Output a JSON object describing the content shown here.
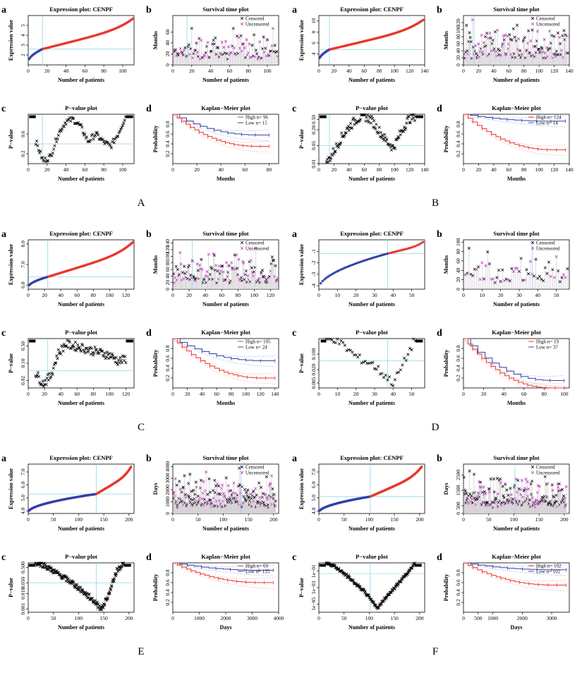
{
  "figure": {
    "groups": [
      {
        "letter": "A",
        "panels": {
          "a": {
            "letter": "a",
            "title": "Expression plot: CENPF",
            "xlabel": "Number of patients",
            "ylabel": "Expression value"
          },
          "b": {
            "letter": "b",
            "title": "Survival time plot",
            "xlabel": "Number of patients",
            "ylabel": "Months",
            "legend": [
              "Censored",
              "Uncensored"
            ]
          },
          "c": {
            "letter": "c",
            "title": "P−value plot",
            "xlabel": "Number of patients",
            "ylabel": "P−value"
          },
          "d": {
            "letter": "d",
            "title": "Kaplan−Meier plot",
            "xlabel": "Months",
            "ylabel": "Probability",
            "legend": [
              "High  n= 96",
              "Low   n= 15"
            ]
          }
        }
      },
      {
        "letter": "B",
        "panels": {
          "a": {
            "letter": "a",
            "title": "Expression plot: CENPF",
            "xlabel": "Number of patients",
            "ylabel": "Expression value"
          },
          "b": {
            "letter": "b",
            "title": "Survival time plot",
            "xlabel": "Number of patients",
            "ylabel": "Months",
            "legend": [
              "Censored",
              "Uncensored"
            ]
          },
          "c": {
            "letter": "c",
            "title": "P−value plot",
            "xlabel": "Number of patients",
            "ylabel": "P−value"
          },
          "d": {
            "letter": "d",
            "title": "Kaplan−Meier plot",
            "xlabel": "Months",
            "ylabel": "Probability",
            "legend": [
              "High  n= 124",
              "Low   n= 14"
            ]
          }
        }
      },
      {
        "letter": "C",
        "panels": {
          "a": {
            "letter": "a",
            "title": "Expression plot: CENPF",
            "xlabel": "Number of patients",
            "ylabel": "Expression value"
          },
          "b": {
            "letter": "b",
            "title": "Survival time plot",
            "xlabel": "Number of patients",
            "ylabel": "Months",
            "legend": [
              "Censored",
              "Uncensored"
            ]
          },
          "c": {
            "letter": "c",
            "title": "P−value plot",
            "xlabel": "Number of patients",
            "ylabel": "P−value"
          },
          "d": {
            "letter": "d",
            "title": "Kaplan−Meier plot",
            "xlabel": "Months",
            "ylabel": "Probability",
            "legend": [
              "High  n= 105",
              "Low   n= 24"
            ]
          }
        }
      },
      {
        "letter": "D",
        "panels": {
          "a": {
            "letter": "a",
            "title": "Expression plot: CENPF",
            "xlabel": "Number of patients",
            "ylabel": "Expression value"
          },
          "b": {
            "letter": "b",
            "title": "Survival time plot",
            "xlabel": "Number of patients",
            "ylabel": "Months",
            "legend": [
              "Censored",
              "Uncensored"
            ]
          },
          "c": {
            "letter": "c",
            "title": "P−value plot",
            "xlabel": "Number of patients",
            "ylabel": "P−value"
          },
          "d": {
            "letter": "d",
            "title": "Kaplan−Meier plot",
            "xlabel": "Months",
            "ylabel": "Probability",
            "legend": [
              "High  n= 19",
              "Low   n= 37"
            ]
          }
        }
      },
      {
        "letter": "E",
        "panels": {
          "a": {
            "letter": "a",
            "title": "Expression plot: CENPF",
            "xlabel": "Number of patients",
            "ylabel": "Expression value"
          },
          "b": {
            "letter": "b",
            "title": "Survival time plot",
            "xlabel": "Number of patients",
            "ylabel": "Days",
            "legend": [
              "Censored",
              "Uncensored"
            ]
          },
          "c": {
            "letter": "c",
            "title": "P−value plot",
            "xlabel": "Number of patients",
            "ylabel": "P−value"
          },
          "d": {
            "letter": "d",
            "title": "Kaplan−Meier plot",
            "xlabel": "Days",
            "ylabel": "Probability",
            "legend": [
              "High  n= 69",
              "Low   n= 135"
            ]
          }
        }
      },
      {
        "letter": "F",
        "panels": {
          "a": {
            "letter": "a",
            "title": "Expression plot: CENPF",
            "xlabel": "Number of patients",
            "ylabel": "Expression value"
          },
          "b": {
            "letter": "b",
            "title": "Survival time plot",
            "xlabel": "Number of patients",
            "ylabel": "Days",
            "legend": [
              "Censored",
              "Uncensored"
            ]
          },
          "c": {
            "letter": "c",
            "title": "P−value plot",
            "xlabel": "Number of patients",
            "ylabel": "P−value"
          },
          "d": {
            "letter": "d",
            "title": "Kaplan−Meier plot",
            "xlabel": "Days",
            "ylabel": "Probability",
            "legend": [
              "High  n= 102",
              "Low   n= 102"
            ]
          }
        }
      }
    ]
  },
  "colors": {
    "high": "#e8392a",
    "low": "#3340a8",
    "cutoff": "#8fd3ea",
    "censored": "#111111",
    "uncensored": "#c03fc0",
    "bar": "#d6d0d6"
  },
  "chart_data": [
    {
      "group": "A",
      "panel": "a",
      "type": "scatter",
      "n": 111,
      "cutoff_index": 15,
      "cutoff_value": 2.6,
      "y_start": 1.3,
      "y_end": 5.7,
      "xlim": [
        0,
        112
      ],
      "ylim": [
        1,
        6
      ],
      "xticks": [
        0,
        20,
        40,
        60,
        80,
        100
      ],
      "yticks": [
        2,
        3,
        4,
        5
      ]
    },
    {
      "group": "A",
      "panel": "b",
      "type": "scatter",
      "n": 111,
      "cutoff_index": 15,
      "ymax": 80,
      "xlim": [
        0,
        112
      ],
      "ylim": [
        0,
        90
      ],
      "xticks": [
        0,
        20,
        40,
        60,
        80,
        100
      ],
      "yticks": [
        0,
        20,
        40,
        60
      ]
    },
    {
      "group": "A",
      "panel": "c",
      "type": "scatter",
      "n": 111,
      "cutoff_index": 15,
      "log": false,
      "xlim": [
        0,
        112
      ],
      "ylim": [
        0,
        1
      ],
      "xticks": [
        0,
        20,
        40,
        60,
        80,
        100
      ],
      "ytick_labels": [
        "0.2",
        "0.6"
      ],
      "ytick_values": [
        0.2,
        0.6
      ],
      "pv_y": [
        0.45,
        0.05,
        0.15,
        0.6,
        0.85,
        0.9,
        0.75,
        0.45,
        0.6,
        0.45,
        0.35,
        0.6,
        0.95
      ]
    },
    {
      "group": "A",
      "panel": "d",
      "type": "line",
      "xmax": 80,
      "xlim": [
        0,
        88
      ],
      "ylim": [
        0,
        1
      ],
      "xticks": [
        0,
        20,
        40,
        60,
        80
      ],
      "yticks": [
        0.2,
        0.4,
        0.6,
        0.8
      ],
      "high_end": 0.35,
      "low_end": 0.58
    },
    {
      "group": "B",
      "panel": "a",
      "type": "scatter",
      "n": 138,
      "cutoff_index": 14,
      "cutoff_value": 4.8,
      "y_start": 2.8,
      "y_end": 10.2,
      "xlim": [
        0,
        140
      ],
      "ylim": [
        2,
        11
      ],
      "xticks": [
        0,
        20,
        40,
        60,
        80,
        100,
        120,
        140
      ],
      "yticks": [
        4,
        6,
        8,
        10
      ]
    },
    {
      "group": "B",
      "panel": "b",
      "type": "scatter",
      "n": 138,
      "cutoff_index": 14,
      "ymax": 140,
      "xlim": [
        0,
        140
      ],
      "ylim": [
        0,
        140
      ],
      "xticks": [
        0,
        20,
        40,
        60,
        80,
        100,
        120,
        140
      ],
      "yticks": [
        0,
        20,
        40,
        60,
        80,
        100,
        120
      ]
    },
    {
      "group": "B",
      "panel": "c",
      "type": "scatter",
      "n": 138,
      "cutoff_index": 14,
      "log": true,
      "xlim": [
        0,
        140
      ],
      "ylim": [
        0.01,
        0.8
      ],
      "xticks": [
        0,
        20,
        40,
        60,
        80,
        100,
        120,
        140
      ],
      "ytick_labels": [
        "0.01",
        "0.05",
        "0.20",
        "0.50"
      ],
      "ytick_values": [
        0.01,
        0.05,
        0.2,
        0.5
      ],
      "pv_y": [
        0.01,
        0.03,
        0.1,
        0.25,
        0.5,
        0.7,
        0.5,
        0.2,
        0.08,
        0.04,
        0.15,
        0.5,
        0.7
      ]
    },
    {
      "group": "B",
      "panel": "d",
      "type": "line",
      "xmax": 135,
      "xlim": [
        0,
        140
      ],
      "ylim": [
        0,
        1
      ],
      "xticks": [
        0,
        20,
        40,
        60,
        80,
        100,
        120,
        140
      ],
      "yticks": [
        0.2,
        0.4,
        0.6,
        0.8
      ],
      "high_end": 0.28,
      "low_end": 0.86
    },
    {
      "group": "C",
      "panel": "a",
      "type": "scatter",
      "n": 129,
      "cutoff_index": 24,
      "cutoff_value": 6.4,
      "y_start": 5.9,
      "y_end": 8.1,
      "xlim": [
        0,
        130
      ],
      "ylim": [
        5.8,
        8.2
      ],
      "xticks": [
        0,
        20,
        40,
        60,
        80,
        100,
        120
      ],
      "yticks": [
        6,
        7,
        8
      ],
      "ytick_labels": [
        "6.0",
        "7.0",
        "8.0"
      ]
    },
    {
      "group": "C",
      "panel": "b",
      "type": "scatter",
      "n": 129,
      "cutoff_index": 24,
      "ymax": 140,
      "xlim": [
        0,
        130
      ],
      "ylim": [
        0,
        150
      ],
      "xticks": [
        0,
        20,
        40,
        60,
        80,
        100,
        120
      ],
      "yticks": [
        0,
        20,
        40,
        60,
        80,
        100,
        120,
        140
      ]
    },
    {
      "group": "C",
      "panel": "c",
      "type": "scatter",
      "n": 129,
      "cutoff_index": 24,
      "log": true,
      "xlim": [
        0,
        130
      ],
      "ylim": [
        0.01,
        1
      ],
      "xticks": [
        0,
        20,
        40,
        60,
        80,
        100,
        120
      ],
      "ytick_labels": [
        "0.02",
        "0.10",
        "0.50"
      ],
      "ytick_values": [
        0.02,
        0.1,
        0.5
      ],
      "pv_y": [
        0.04,
        0.015,
        0.03,
        0.25,
        0.6,
        0.5,
        0.45,
        0.35,
        0.3,
        0.25,
        0.2,
        0.12,
        0.15
      ]
    },
    {
      "group": "C",
      "panel": "d",
      "type": "line",
      "xmax": 140,
      "xlim": [
        0,
        145
      ],
      "ylim": [
        0,
        1
      ],
      "xticks": [
        0,
        20,
        40,
        60,
        80,
        100,
        120,
        140
      ],
      "yticks": [
        0.2,
        0.4,
        0.6,
        0.8
      ],
      "high_end": 0.2,
      "low_end": 0.55
    },
    {
      "group": "D",
      "panel": "a",
      "type": "scatter",
      "n": 56,
      "cutoff_index": 37,
      "cutoff_value": -1.2,
      "y_start": -4.2,
      "y_end": -0.2,
      "xlim": [
        0,
        57
      ],
      "ylim": [
        -4.3,
        0
      ],
      "xticks": [
        0,
        10,
        20,
        30,
        40,
        50
      ],
      "yticks": [
        -4,
        -3,
        -2,
        -1
      ]
    },
    {
      "group": "D",
      "panel": "b",
      "type": "scatter",
      "n": 56,
      "cutoff_index": 37,
      "ymax": 100,
      "xlim": [
        0,
        57
      ],
      "ylim": [
        0,
        105
      ],
      "xticks": [
        0,
        10,
        20,
        30,
        40,
        50
      ],
      "yticks": [
        0,
        20,
        40,
        60,
        80,
        100
      ]
    },
    {
      "group": "D",
      "panel": "c",
      "type": "scatter",
      "n": 56,
      "cutoff_index": 37,
      "log": true,
      "xlim": [
        0,
        57
      ],
      "ylim": [
        0.003,
        0.5
      ],
      "xticks": [
        0,
        10,
        20,
        30,
        40,
        50
      ],
      "ytick_labels": [
        "0.005",
        "0.020",
        "0.100"
      ],
      "ytick_values": [
        0.005,
        0.02,
        0.1
      ],
      "pv_y": [
        0.5,
        0.5,
        0.3,
        0.15,
        0.08,
        0.05,
        0.04,
        0.02,
        0.01,
        0.005,
        0.02,
        0.1,
        0.5
      ]
    },
    {
      "group": "D",
      "panel": "d",
      "type": "line",
      "xmax": 100,
      "xlim": [
        0,
        105
      ],
      "ylim": [
        0,
        1
      ],
      "xticks": [
        0,
        20,
        40,
        60,
        80,
        100
      ],
      "yticks": [
        0.2,
        0.4,
        0.6,
        0.8
      ],
      "high_end": 0.0,
      "low_end": 0.15
    },
    {
      "group": "E",
      "panel": "a",
      "type": "scatter",
      "n": 204,
      "cutoff_index": 135,
      "cutoff_value": 5.3,
      "y_start": 3.9,
      "y_end": 7.4,
      "xlim": [
        0,
        210
      ],
      "ylim": [
        3.8,
        7.6
      ],
      "xticks": [
        0,
        50,
        100,
        150,
        200
      ],
      "yticks": [
        4,
        5,
        6,
        7
      ],
      "ytick_labels": [
        "4.0",
        "5.0",
        "6.0",
        "7.0"
      ]
    },
    {
      "group": "E",
      "panel": "b",
      "type": "scatter",
      "n": 204,
      "cutoff_index": 135,
      "ymax": 4000,
      "xlim": [
        0,
        210
      ],
      "ylim": [
        0,
        4200
      ],
      "xticks": [
        0,
        50,
        100,
        150,
        200
      ],
      "yticks": [
        0,
        1000,
        2000,
        3000,
        4000
      ]
    },
    {
      "group": "E",
      "panel": "c",
      "type": "scatter",
      "n": 204,
      "cutoff_index": 135,
      "log": true,
      "xlim": [
        0,
        210
      ],
      "ylim": [
        0.0006,
        1
      ],
      "xticks": [
        0,
        50,
        100,
        150,
        200
      ],
      "ytick_labels": [
        "0.001",
        "0.010",
        "0.050",
        "0.500"
      ],
      "ytick_values": [
        0.001,
        0.01,
        0.05,
        0.5
      ],
      "pv_y": [
        1,
        0.8,
        0.4,
        0.2,
        0.1,
        0.05,
        0.02,
        0.008,
        0.003,
        0.001,
        0.01,
        0.3,
        1
      ]
    },
    {
      "group": "E",
      "panel": "d",
      "type": "line",
      "xmax": 3800,
      "xlim": [
        0,
        4000
      ],
      "ylim": [
        0,
        1
      ],
      "xticks": [
        0,
        1000,
        2000,
        3000,
        4000
      ],
      "yticks": [
        0.2,
        0.4,
        0.6,
        0.8
      ],
      "high_end": 0.6,
      "low_end": 0.85
    },
    {
      "group": "F",
      "panel": "a",
      "type": "scatter",
      "n": 204,
      "cutoff_index": 102,
      "cutoff_value": 5.1,
      "y_start": 3.9,
      "y_end": 7.4,
      "xlim": [
        0,
        210
      ],
      "ylim": [
        3.8,
        7.6
      ],
      "xticks": [
        0,
        50,
        100,
        150,
        200
      ],
      "yticks": [
        4,
        5,
        6,
        7
      ],
      "ytick_labels": [
        "4.0",
        "5.0",
        "6.0",
        "7.0"
      ]
    },
    {
      "group": "F",
      "panel": "b",
      "type": "scatter",
      "n": 204,
      "cutoff_index": 102,
      "ymax": 3000,
      "xlim": [
        0,
        210
      ],
      "ylim": [
        0,
        3200
      ],
      "xticks": [
        0,
        50,
        100,
        150,
        200
      ],
      "yticks": [
        0,
        500,
        1500,
        2500
      ]
    },
    {
      "group": "F",
      "panel": "c",
      "type": "scatter",
      "n": 204,
      "cutoff_index": 102,
      "log": true,
      "xlim": [
        0,
        210
      ],
      "ylim": [
        1e-06,
        1
      ],
      "xticks": [
        0,
        50,
        100,
        150,
        200
      ],
      "ytick_labels": [
        "1e−05",
        "1e−03",
        "1e−01"
      ],
      "ytick_values": [
        1e-05,
        0.001,
        0.1
      ],
      "pv_y": [
        1,
        0.5,
        0.1,
        0.02,
        0.003,
        0.0005,
        5e-05,
        3e-06,
        5e-05,
        0.0005,
        0.005,
        0.05,
        1
      ]
    },
    {
      "group": "F",
      "panel": "d",
      "type": "line",
      "xmax": 3500,
      "xlim": [
        0,
        3600
      ],
      "ylim": [
        0,
        1
      ],
      "xticks": [
        0,
        500,
        1000,
        2000,
        3000
      ],
      "yticks": [
        0.2,
        0.4,
        0.6,
        0.8
      ],
      "high_end": 0.55,
      "low_end": 0.86
    }
  ]
}
